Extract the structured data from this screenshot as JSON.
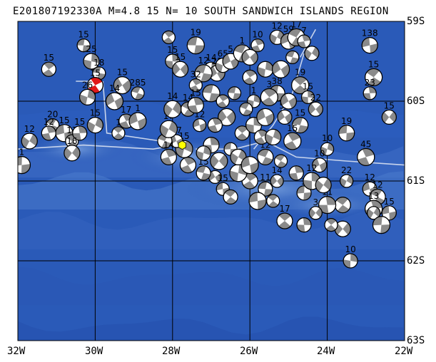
{
  "title": "E201807192330A M=4.8 15 N= 10 SOUTH SANDWICH ISLANDS REGION",
  "map": {
    "lon_range": [
      -32,
      -22
    ],
    "lat_range": [
      -63,
      -59
    ],
    "lat_labels": [
      "59S",
      "60S",
      "61S",
      "62S",
      "63S"
    ],
    "lon_labels": [
      "32W",
      "30W",
      "28W",
      "26W",
      "24W",
      "22W"
    ],
    "colors": {
      "ocean_deep": "#1b3f9c",
      "ocean_mid": "#2a5ab8",
      "ocean_shallow": "#5b86cf",
      "grid": "#000000",
      "plate_boundary": "#c8d4ec",
      "mechanism_dark": "#8a8a8a",
      "mechanism_light": "#ffffff",
      "target_mechanism": "#e01818",
      "target_epicenter": "#ffff00"
    }
  },
  "mechanisms": [
    {
      "lon": -30.3,
      "lat": -59.3,
      "label": "15"
    },
    {
      "lon": -31.2,
      "lat": -59.6,
      "label": "15"
    },
    {
      "lon": -30.1,
      "lat": -59.5,
      "label": "25"
    },
    {
      "lon": -29.3,
      "lat": -59.8,
      "label": "15"
    },
    {
      "lon": -29.9,
      "lat": -59.65,
      "label": "18"
    },
    {
      "lon": -30.0,
      "lat": -59.8,
      "label": "15",
      "target": true
    },
    {
      "lon": -30.2,
      "lat": -59.95,
      "label": "26"
    },
    {
      "lon": -29.5,
      "lat": -60.0,
      "label": "14"
    },
    {
      "lon": -28.9,
      "lat": -59.9,
      "label": "285"
    },
    {
      "lon": -29.2,
      "lat": -60.25,
      "label": "17"
    },
    {
      "lon": -30.0,
      "lat": -60.3,
      "label": "15"
    },
    {
      "lon": -28.9,
      "lat": -60.25,
      "label": "1"
    },
    {
      "lon": -31.1,
      "lat": -60.3,
      "label": "20"
    },
    {
      "lon": -31.2,
      "lat": -60.4,
      "label": "12"
    },
    {
      "lon": -31.7,
      "lat": -60.5,
      "label": "12"
    },
    {
      "lon": -30.8,
      "lat": -60.4,
      "label": "15"
    },
    {
      "lon": -30.6,
      "lat": -60.5,
      "label": "17"
    },
    {
      "lon": -30.4,
      "lat": -60.4,
      "label": "15"
    },
    {
      "lon": -30.6,
      "lat": -60.65,
      "label": "16"
    },
    {
      "lon": -31.9,
      "lat": -60.8,
      "label": "1"
    },
    {
      "lon": -29.4,
      "lat": -60.4,
      "label": "1"
    },
    {
      "lon": -28.0,
      "lat": -59.5,
      "label": "15"
    },
    {
      "lon": -27.8,
      "lat": -59.6,
      "label": "15"
    },
    {
      "lon": -27.4,
      "lat": -59.3,
      "label": "19"
    },
    {
      "lon": -28.1,
      "lat": -59.2,
      "label": ""
    },
    {
      "lon": -27.0,
      "lat": -59.6,
      "label": "14"
    },
    {
      "lon": -26.85,
      "lat": -59.65,
      "label": "22"
    },
    {
      "lon": -27.2,
      "lat": -59.65,
      "label": "12"
    },
    {
      "lon": -27.4,
      "lat": -59.8,
      "label": "32"
    },
    {
      "lon": -26.7,
      "lat": -59.55,
      "label": "65"
    },
    {
      "lon": -26.5,
      "lat": -59.5,
      "label": "5"
    },
    {
      "lon": -26.2,
      "lat": -59.4,
      "label": "1"
    },
    {
      "lon": -25.8,
      "lat": -59.3,
      "label": "10"
    },
    {
      "lon": -25.3,
      "lat": -59.2,
      "label": "12"
    },
    {
      "lon": -25.0,
      "lat": -59.25,
      "label": "59"
    },
    {
      "lon": -24.8,
      "lat": -59.2,
      "label": "17"
    },
    {
      "lon": -24.6,
      "lat": -59.25,
      "label": "7"
    },
    {
      "lon": -24.4,
      "lat": -59.4,
      "label": ""
    },
    {
      "lon": -22.9,
      "lat": -59.3,
      "label": "138"
    },
    {
      "lon": -22.8,
      "lat": -59.7,
      "label": "15"
    },
    {
      "lon": -22.9,
      "lat": -59.9,
      "label": "23"
    },
    {
      "lon": -22.4,
      "lat": -60.2,
      "label": "15"
    },
    {
      "lon": -23.5,
      "lat": -60.4,
      "label": "19"
    },
    {
      "lon": -24.7,
      "lat": -59.8,
      "label": "19"
    },
    {
      "lon": -24.5,
      "lat": -59.95,
      "label": "15"
    },
    {
      "lon": -24.3,
      "lat": -60.1,
      "label": "22"
    },
    {
      "lon": -25.3,
      "lat": -59.9,
      "label": "38"
    },
    {
      "lon": -25.5,
      "lat": -59.95,
      "label": "3"
    },
    {
      "lon": -25.9,
      "lat": -60.0,
      "label": "1"
    },
    {
      "lon": -25.1,
      "lat": -60.2,
      "label": "57"
    },
    {
      "lon": -24.7,
      "lat": -60.3,
      "label": "15"
    },
    {
      "lon": -24.9,
      "lat": -60.5,
      "label": "15"
    },
    {
      "lon": -24.0,
      "lat": -60.6,
      "label": "10"
    },
    {
      "lon": -24.2,
      "lat": -60.8,
      "label": "10"
    },
    {
      "lon": -25.6,
      "lat": -60.7,
      "label": "12"
    },
    {
      "lon": -23.0,
      "lat": -60.7,
      "label": "45"
    },
    {
      "lon": -23.5,
      "lat": -61.0,
      "label": "22"
    },
    {
      "lon": -22.9,
      "lat": -61.1,
      "label": "12"
    },
    {
      "lon": -22.7,
      "lat": -61.2,
      "label": "12"
    },
    {
      "lon": -22.8,
      "lat": -61.35,
      "label": "13"
    },
    {
      "lon": -22.8,
      "lat": -61.4,
      "label": ""
    },
    {
      "lon": -22.4,
      "lat": -61.4,
      "label": "15"
    },
    {
      "lon": -23.6,
      "lat": -61.3,
      "label": ""
    },
    {
      "lon": -24.0,
      "lat": -61.3,
      "label": "11"
    },
    {
      "lon": -24.3,
      "lat": -61.4,
      "label": "3"
    },
    {
      "lon": -24.6,
      "lat": -61.15,
      "label": "3"
    },
    {
      "lon": -25.1,
      "lat": -61.5,
      "label": "17"
    },
    {
      "lon": -24.4,
      "lat": -61.0,
      "label": "12"
    },
    {
      "lon": -25.3,
      "lat": -61.0,
      "label": "14"
    },
    {
      "lon": -25.6,
      "lat": -61.1,
      "label": "11"
    },
    {
      "lon": -26.0,
      "lat": -61.0,
      "label": "17"
    },
    {
      "lon": -26.3,
      "lat": -60.9,
      "label": "1"
    },
    {
      "lon": -26.9,
      "lat": -60.95,
      "label": "1"
    },
    {
      "lon": -27.2,
      "lat": -60.9,
      "label": "15"
    },
    {
      "lon": -27.6,
      "lat": -60.8,
      "label": "1"
    },
    {
      "lon": -27.7,
      "lat": -60.6,
      "label": "15"
    },
    {
      "lon": -27.9,
      "lat": -60.5,
      "label": "17"
    },
    {
      "lon": -28.2,
      "lat": -60.5,
      "label": "11"
    },
    {
      "lon": -28.1,
      "lat": -60.7,
      "label": "14"
    },
    {
      "lon": -28.1,
      "lat": -60.35,
      "label": "17"
    },
    {
      "lon": -27.3,
      "lat": -60.3,
      "label": "12"
    },
    {
      "lon": -27.6,
      "lat": -60.1,
      "label": "14"
    },
    {
      "lon": -27.4,
      "lat": -60.05,
      "label": "15"
    },
    {
      "lon": -28.0,
      "lat": -60.1,
      "label": "14"
    },
    {
      "lon": -26.7,
      "lat": -61.1,
      "label": "15"
    },
    {
      "lon": -26.5,
      "lat": -61.2,
      "label": ""
    },
    {
      "lon": -27.0,
      "lat": -60.55,
      "label": ""
    },
    {
      "lon": -26.8,
      "lat": -60.75,
      "label": ""
    },
    {
      "lon": -26.5,
      "lat": -60.6,
      "label": ""
    },
    {
      "lon": -26.2,
      "lat": -60.4,
      "label": ""
    },
    {
      "lon": -25.9,
      "lat": -60.3,
      "label": ""
    },
    {
      "lon": -26.6,
      "lat": -60.2,
      "label": ""
    },
    {
      "lon": -26.4,
      "lat": -59.9,
      "label": ""
    },
    {
      "lon": -26.0,
      "lat": -59.7,
      "label": ""
    },
    {
      "lon": -25.6,
      "lat": -59.6,
      "label": ""
    },
    {
      "lon": -25.2,
      "lat": -59.6,
      "label": ""
    },
    {
      "lon": -24.9,
      "lat": -59.45,
      "label": ""
    },
    {
      "lon": -25.7,
      "lat": -60.45,
      "label": ""
    },
    {
      "lon": -25.4,
      "lat": -60.45,
      "label": ""
    },
    {
      "lon": -25.6,
      "lat": -60.2,
      "label": ""
    },
    {
      "lon": -26.1,
      "lat": -60.1,
      "label": ""
    },
    {
      "lon": -26.9,
      "lat": -60.3,
      "label": ""
    },
    {
      "lon": -26.3,
      "lat": -60.7,
      "label": ""
    },
    {
      "lon": -26.0,
      "lat": -60.8,
      "label": ""
    },
    {
      "lon": -25.2,
      "lat": -60.75,
      "label": ""
    },
    {
      "lon": -24.8,
      "lat": -60.9,
      "label": ""
    },
    {
      "lon": -24.1,
      "lat": -61.05,
      "label": ""
    },
    {
      "lon": -25.8,
      "lat": -61.25,
      "label": ""
    },
    {
      "lon": -25.4,
      "lat": -61.25,
      "label": ""
    },
    {
      "lon": -24.6,
      "lat": -61.55,
      "label": ""
    },
    {
      "lon": -23.6,
      "lat": -61.6,
      "label": ""
    },
    {
      "lon": -22.6,
      "lat": -61.55,
      "label": ""
    },
    {
      "lon": -23.9,
      "lat": -61.55,
      "label": ""
    },
    {
      "lon": -23.4,
      "lat": -62.0,
      "label": "10"
    },
    {
      "lon": -26.0,
      "lat": -59.45,
      "label": ""
    },
    {
      "lon": -27.0,
      "lat": -59.9,
      "label": ""
    },
    {
      "lon": -26.7,
      "lat": -60.0,
      "label": ""
    },
    {
      "lon": -27.2,
      "lat": -60.65,
      "label": ""
    },
    {
      "lon": -25.0,
      "lat": -60.0,
      "label": ""
    }
  ],
  "target_epicenter": {
    "lon": -27.75,
    "lat": -60.55
  }
}
